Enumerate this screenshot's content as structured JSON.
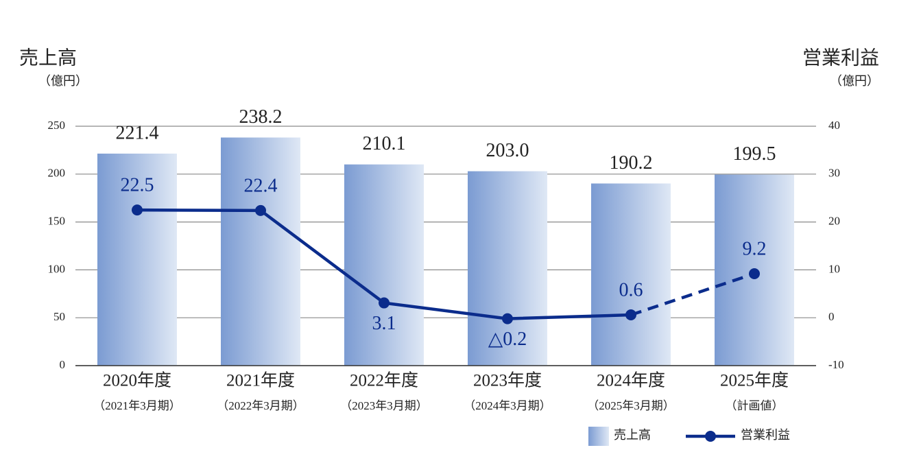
{
  "chart_data": {
    "type": "bar_line",
    "y_title": "売上高",
    "y_unit": "（億円）",
    "y2_title": "営業利益",
    "y2_unit": "（億円）",
    "categories": [
      "2020年度",
      "2021年度",
      "2022年度",
      "2023年度",
      "2024年度",
      "2025年度"
    ],
    "sublabels": [
      "（2021年3月期）",
      "（2022年3月期）",
      "（2023年3月期）",
      "（2024年3月期）",
      "（2025年3月期）",
      "（計画値）"
    ],
    "series": [
      {
        "name": "売上高",
        "type": "bar",
        "color_from": "#7b9bd2",
        "color_to": "#dfe8f5",
        "values": [
          221.4,
          238.2,
          210.1,
          203.0,
          190.2,
          199.5
        ],
        "value_labels": [
          "221.4",
          "238.2",
          "210.1",
          "203.0",
          "190.2",
          "199.5"
        ]
      },
      {
        "name": "営業利益",
        "type": "line",
        "axis": "y2",
        "color": "#0b2c8c",
        "values": [
          22.5,
          22.4,
          3.1,
          -0.2,
          0.6,
          9.2
        ],
        "value_labels": [
          "22.5",
          "22.4",
          "3.1",
          "△0.2",
          "0.6",
          "9.2"
        ],
        "dashed_from": 4
      }
    ],
    "ylim": [
      0,
      250
    ],
    "yticks": [
      0,
      50,
      100,
      150,
      200,
      250
    ],
    "y2lim": [
      -10,
      40
    ],
    "y2ticks": [
      -10,
      0,
      10,
      20,
      30,
      40
    ],
    "grid": true,
    "legend": "bottom-right"
  }
}
